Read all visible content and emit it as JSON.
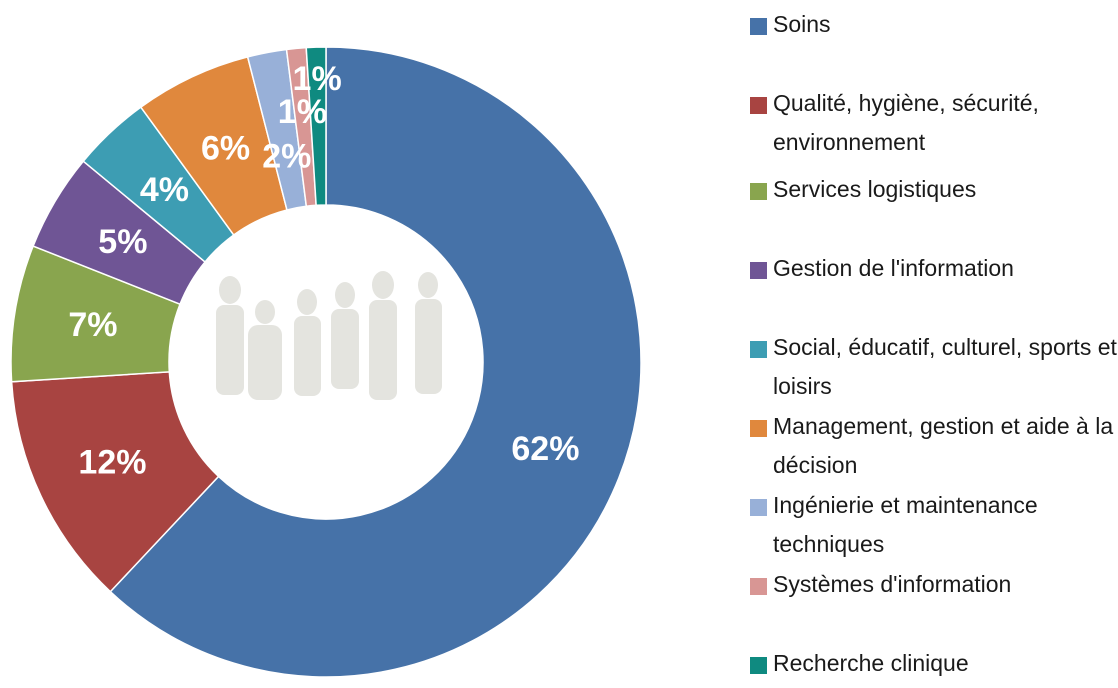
{
  "chart_data": {
    "type": "donut",
    "categories": [
      "Soins",
      "Qualité, hygiène, sécurité, environnement",
      "Services logistiques",
      "Gestion de l'information",
      "Social, éducatif, culturel, sports et loisirs",
      "Management, gestion et aide à la décision",
      "Ingénierie et maintenance techniques",
      "Systèmes d'information",
      "Recherche clinique"
    ],
    "values": [
      62,
      12,
      7,
      5,
      4,
      6,
      2,
      1,
      1
    ],
    "value_labels": [
      "62%",
      "12%",
      "7%",
      "5%",
      "4%",
      "6%",
      "2%",
      "1%",
      "1%"
    ],
    "colors": [
      "#4672a8",
      "#a84441",
      "#89a54e",
      "#6f5595",
      "#3d9db3",
      "#e0883d",
      "#98b0d8",
      "#d89694",
      "#0f8a80"
    ]
  }
}
